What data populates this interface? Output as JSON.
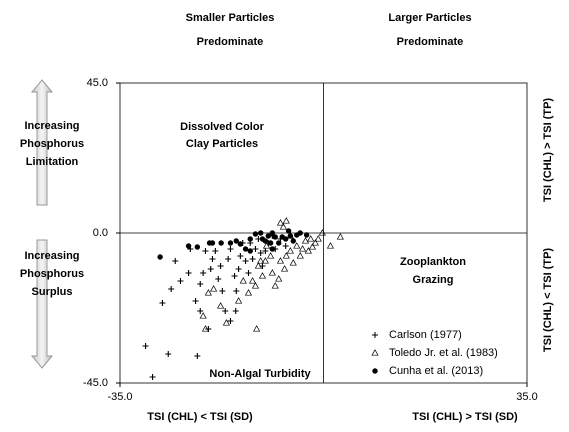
{
  "chart_data": {
    "type": "scatter",
    "annotations": [
      [
        "Smaller Particles",
        "Predominate"
      ],
      [
        "Larger Particles",
        "Predominate"
      ],
      [
        "Increasing",
        "Phosphorus",
        "Limitation"
      ],
      [
        "Increasing",
        "Phosphorus",
        "Surplus"
      ],
      [
        "Dissolved Color",
        "Clay Particles"
      ],
      [
        "Zooplankton",
        "Grazing"
      ],
      [
        "Non-Algal Turbidity"
      ],
      [
        "TSI (CHL) > TSI (TP)"
      ],
      [
        "TSI (CHL) < TSI (TP)"
      ],
      [
        "TSI (CHL) < TSI (SD)"
      ],
      [
        "TSI (CHL) > TSI (SD)"
      ]
    ],
    "xlim": [
      -35,
      35
    ],
    "xticks": [
      {
        "value": -35,
        "label": "-35.0"
      },
      {
        "value": 35,
        "label": "35.0"
      }
    ],
    "ylim": [
      -45,
      45
    ],
    "yticks": [
      {
        "value": 45,
        "label": "45.0"
      },
      {
        "value": 0,
        "label": "0.0"
      },
      {
        "value": -45,
        "label": "-45.0"
      }
    ],
    "legend": "lower right",
    "series": [
      {
        "name": "Carlson (1977)",
        "marker": "plus",
        "color": "#000000",
        "x": [
          -30.6,
          -29.4,
          -26.7,
          -27.7,
          -26.2,
          -24.6,
          -23.2,
          -21.7,
          -22.0,
          -21.2,
          -20.7,
          -19.4,
          -19.1,
          -18.6,
          -18.1,
          -17.4,
          -17.7,
          -16.4,
          -16.0,
          -15.3,
          -15.0,
          -14.6,
          -14.3,
          -13.9,
          -13.4,
          -12.9,
          -12.2,
          -11.7,
          -11.2,
          -10.5,
          -10.0,
          -9.5,
          -8.8,
          -8.3,
          -7.4,
          -6.5,
          -22.9,
          -25.5,
          -20.3,
          -16.9,
          -15.1,
          -16.0,
          -19.8,
          -21.2,
          -12.6,
          -10.8
        ],
        "values": [
          -33.9,
          -43.2,
          -36.3,
          -21.0,
          -16.8,
          -14.4,
          -12.0,
          -36.9,
          -20.4,
          -15.3,
          -12.0,
          -10.8,
          -7.8,
          -5.4,
          -13.8,
          -17.4,
          -9.9,
          -7.8,
          -4.8,
          -12.9,
          -17.4,
          -10.8,
          -6.9,
          -3.0,
          -8.4,
          -12.0,
          -7.8,
          -4.8,
          -1.8,
          -9.9,
          -5.4,
          -3.0,
          -0.9,
          -4.8,
          -1.8,
          -3.9,
          -4.8,
          -8.4,
          -5.4,
          -23.4,
          -23.4,
          -26.4,
          -28.8,
          -23.4,
          -3.0,
          -6.0
        ]
      },
      {
        "name": "Toledo Jr. et al. (1983)",
        "marker": "triangle",
        "color": "#000000",
        "x": [
          -20.7,
          -20.3,
          -19.8,
          -18.9,
          -17.7,
          -16.7,
          -14.6,
          -12.9,
          -11.5,
          -12.2,
          -11.2,
          -10.5,
          -10.0,
          -9.1,
          -8.8,
          -8.3,
          -7.7,
          -7.4,
          -6.7,
          -6.4,
          -5.7,
          -5.2,
          -4.6,
          -4.0,
          -3.6,
          -3.1,
          -2.6,
          -2.2,
          -1.9,
          -1.4,
          -0.9,
          -6.9,
          -7.4,
          -6.4,
          -5.7,
          -9.8,
          -10.8,
          1.2,
          2.9,
          -0.2,
          -11.7,
          -13.8
        ],
        "values": [
          -24.9,
          -28.8,
          -18.0,
          -16.8,
          -21.9,
          -27.0,
          -20.4,
          -18.0,
          -28.8,
          -14.4,
          -9.9,
          -12.9,
          -8.4,
          -6.9,
          -12.0,
          -15.9,
          -13.8,
          -8.4,
          -10.8,
          -6.9,
          -5.4,
          -9.0,
          -3.9,
          -6.9,
          -4.8,
          -2.4,
          -5.4,
          -1.8,
          -4.2,
          -3.0,
          -1.8,
          1.8,
          3.0,
          3.6,
          -0.9,
          -3.9,
          -8.4,
          -3.9,
          -1.2,
          0.0,
          -15.9,
          -14.4
        ]
      },
      {
        "name": "Cunha et al. (2013)",
        "marker": "circle",
        "color": "#000000",
        "x": [
          -28.1,
          -23.2,
          -21.7,
          -19.6,
          -19.1,
          -17.6,
          -16.0,
          -15.0,
          -14.3,
          -13.4,
          -12.6,
          -11.7,
          -10.8,
          -10.5,
          -10.0,
          -9.5,
          -9.1,
          -8.8,
          -8.3,
          -7.7,
          -7.1,
          -6.5,
          -6.0,
          -5.7,
          -5.2,
          -4.6,
          -4.0,
          -2.9,
          -8.8,
          -12.6
        ],
        "values": [
          -7.2,
          -3.9,
          -4.2,
          -3.0,
          -3.0,
          -3.0,
          -3.0,
          -2.4,
          -3.3,
          -4.8,
          -1.8,
          -0.3,
          0.0,
          -1.8,
          -2.4,
          -0.9,
          -3.0,
          0.0,
          -1.2,
          -3.0,
          -1.2,
          -1.8,
          0.6,
          -0.9,
          -2.4,
          -0.6,
          0.0,
          -0.6,
          -4.8,
          -5.4
        ]
      }
    ]
  }
}
